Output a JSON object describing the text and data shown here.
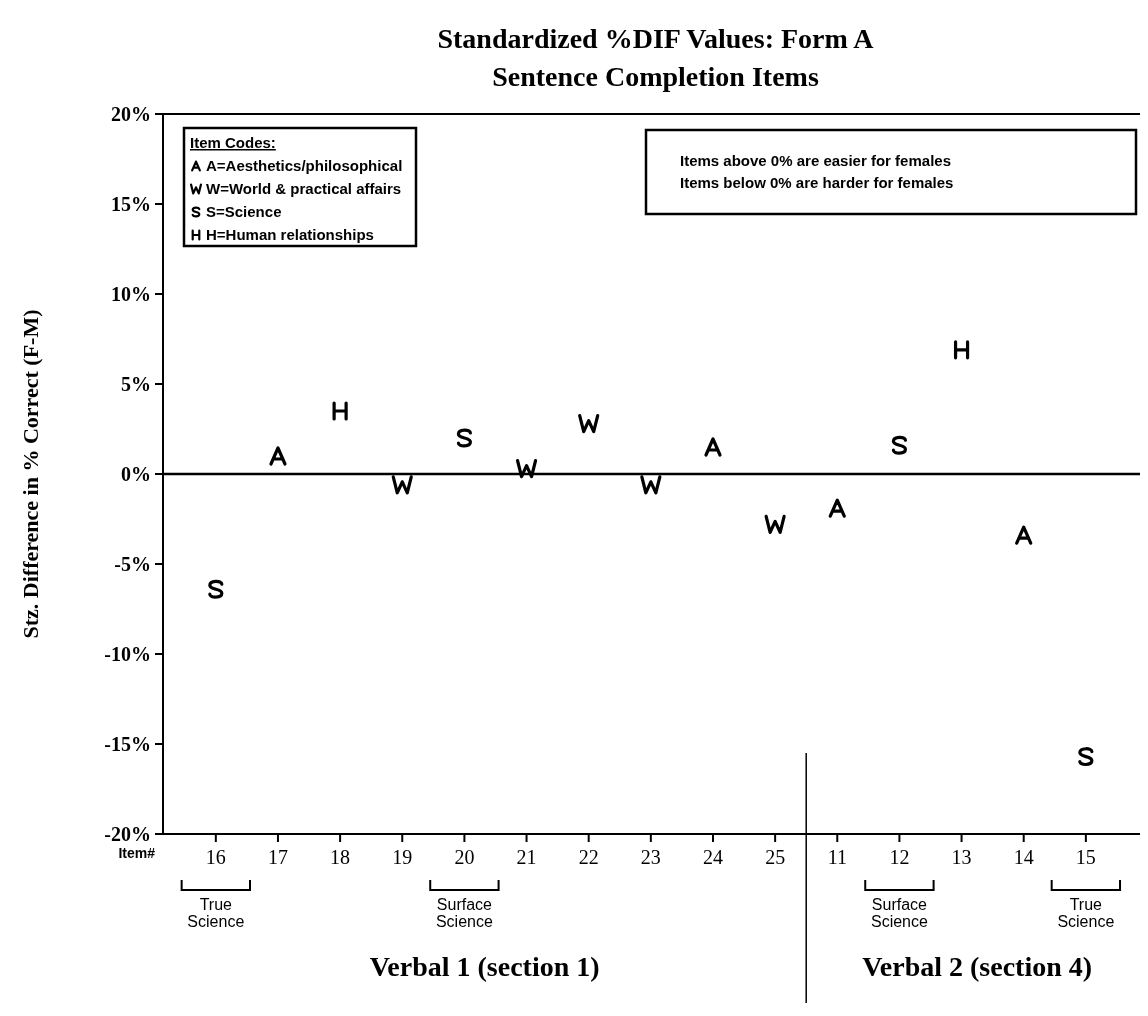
{
  "chart_data": {
    "type": "scatter",
    "title": "Standardized %DIF Values: Form A",
    "subtitle": "Sentence Completion Items",
    "xlabel": "Item#",
    "ylabel": "Stz. Difference in % Correct (F-M)",
    "categories": [
      "16",
      "17",
      "18",
      "19",
      "20",
      "21",
      "22",
      "23",
      "24",
      "25",
      "11",
      "12",
      "13",
      "14",
      "15"
    ],
    "series": [
      {
        "name": "A=Aesthetics/philosophical",
        "color": "#000000",
        "x": [
          "17",
          "24",
          "11",
          "14"
        ],
        "values": [
          1.0,
          1.5,
          -1.9,
          -3.4
        ]
      },
      {
        "name": "W=World & practical affairs",
        "color": "#000000",
        "x": [
          "19",
          "21",
          "22",
          "23",
          "25"
        ],
        "values": [
          -0.6,
          0.3,
          2.8,
          -0.6,
          -2.8
        ]
      },
      {
        "name": "S=Science",
        "color": "#000000",
        "x": [
          "16",
          "20",
          "12",
          "15"
        ],
        "values": [
          -6.4,
          2.0,
          1.6,
          -15.7
        ]
      },
      {
        "name": "H=Human relationships",
        "color": "#000000",
        "x": [
          "18",
          "13"
        ],
        "values": [
          3.5,
          6.9
        ]
      }
    ],
    "ylim": [
      -20,
      20
    ],
    "yticks": [
      {
        "value": -20,
        "label": "-20%"
      },
      {
        "value": -15,
        "label": "-15%"
      },
      {
        "value": -10,
        "label": "-10%"
      },
      {
        "value": -5,
        "label": "-5%"
      },
      {
        "value": 0,
        "label": "0%"
      },
      {
        "value": 5,
        "label": "5%"
      },
      {
        "value": 10,
        "label": "10%"
      },
      {
        "value": 15,
        "label": "15%"
      },
      {
        "value": 20,
        "label": "20%"
      }
    ],
    "ref_lines": [
      {
        "axis": "y",
        "value": 0,
        "color": "#000000"
      }
    ],
    "legend": "top left",
    "legend_title": "Item Codes:",
    "annotations": [
      "Items above 0% are easier for females",
      "Items below 0% are harder for females",
      "True Science",
      "Surface Science",
      "Surface Science",
      "True Science",
      "Verbal 1 (section 1)",
      "Verbal 2 (section 4)"
    ]
  }
}
